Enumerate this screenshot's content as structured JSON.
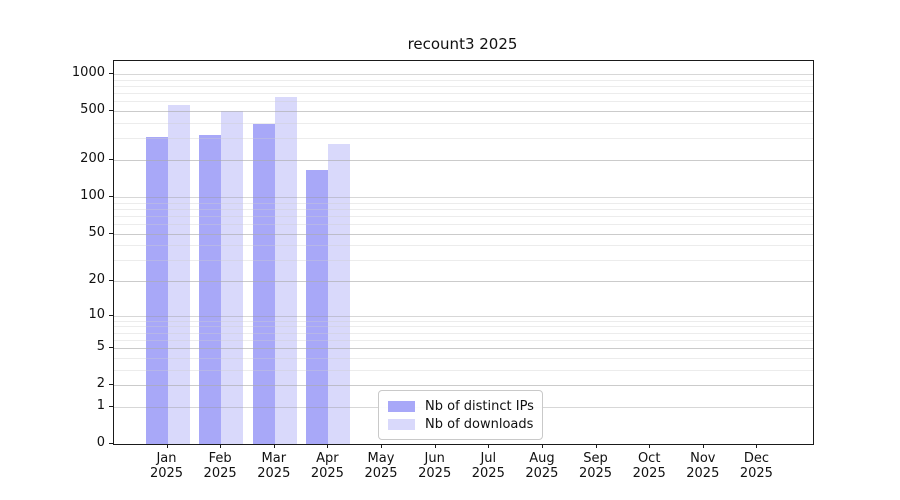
{
  "chart_data": {
    "type": "bar",
    "title": "recount3 2025",
    "year_label": "2025",
    "categories": [
      "Jan",
      "Feb",
      "Mar",
      "Apr",
      "May",
      "Jun",
      "Jul",
      "Aug",
      "Sep",
      "Oct",
      "Nov",
      "Dec"
    ],
    "series": [
      {
        "name": "Nb of distinct IPs",
        "color": "#a8a8f8",
        "values": [
          310,
          318,
          395,
          165,
          null,
          null,
          null,
          null,
          null,
          null,
          null,
          null
        ]
      },
      {
        "name": "Nb of downloads",
        "color": "#d9d9fb",
        "values": [
          560,
          500,
          645,
          270,
          null,
          null,
          null,
          null,
          null,
          null,
          null,
          null
        ]
      }
    ],
    "yticks": [
      0,
      1,
      2,
      5,
      10,
      20,
      50,
      100,
      200,
      500,
      1000
    ],
    "ylim": [
      0,
      1000
    ],
    "yscale": "log1p",
    "grid": "horizontal major and minor gridlines",
    "legend_position": "inside lower-center-left",
    "axis_color": "#1a1a1a",
    "major_grid_color": "#dcdcdc",
    "minor_grid_color": "#ececec"
  }
}
